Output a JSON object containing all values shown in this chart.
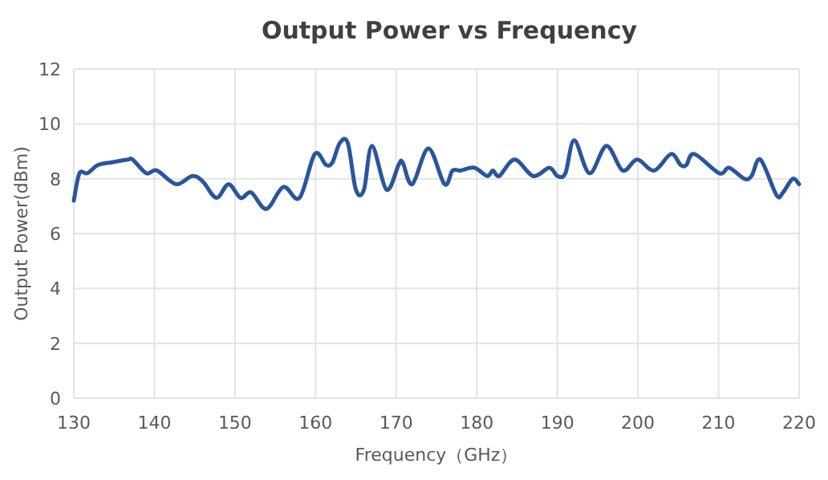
{
  "chart_data": {
    "type": "line",
    "title": "Output Power vs Frequency",
    "xlabel": "Frequency（GHz）",
    "ylabel": "Output Power(dBm)",
    "x": [
      130,
      130.7,
      131.7,
      133,
      134.7,
      136.7,
      137.3,
      139,
      140.3,
      142.7,
      144.7,
      146,
      147.7,
      149.2,
      150.7,
      152,
      153.9,
      156,
      158,
      159.9,
      161.3,
      162.1,
      163,
      164,
      165,
      166,
      167,
      168.8,
      170.3,
      170.8,
      172,
      174,
      176,
      177,
      178,
      179.7,
      181.3,
      182,
      182.8,
      184.7,
      187,
      189,
      190,
      191,
      192.1,
      194,
      196.1,
      198.1,
      199.9,
      202,
      204.1,
      205.3,
      206,
      207,
      210.1,
      211.3,
      213.2,
      214.1,
      215.2,
      217.2,
      218,
      219.2,
      220
    ],
    "values": [
      7.2,
      8.2,
      8.2,
      8.5,
      8.6,
      8.7,
      8.7,
      8.2,
      8.3,
      7.8,
      8.1,
      7.9,
      7.3,
      7.8,
      7.3,
      7.5,
      6.9,
      7.7,
      7.3,
      8.9,
      8.5,
      8.6,
      9.3,
      9.3,
      7.6,
      7.6,
      9.2,
      7.6,
      8.5,
      8.6,
      7.8,
      9.1,
      7.8,
      8.3,
      8.3,
      8.4,
      8.1,
      8.3,
      8.1,
      8.7,
      8.1,
      8.4,
      8.1,
      8.2,
      9.4,
      8.2,
      9.2,
      8.3,
      8.7,
      8.3,
      8.9,
      8.5,
      8.5,
      8.9,
      8.2,
      8.4,
      8.0,
      8.1,
      8.7,
      7.4,
      7.5,
      8.0,
      7.8
    ],
    "color": "#2a5699",
    "line_style": "solid",
    "marker": "none",
    "grid": true,
    "xlim": [
      130,
      220
    ],
    "ylim": [
      0,
      12
    ],
    "xticks": [
      130,
      140,
      150,
      160,
      170,
      180,
      190,
      200,
      210,
      220
    ],
    "yticks": [
      0,
      2,
      4,
      6,
      8,
      10,
      12
    ]
  }
}
